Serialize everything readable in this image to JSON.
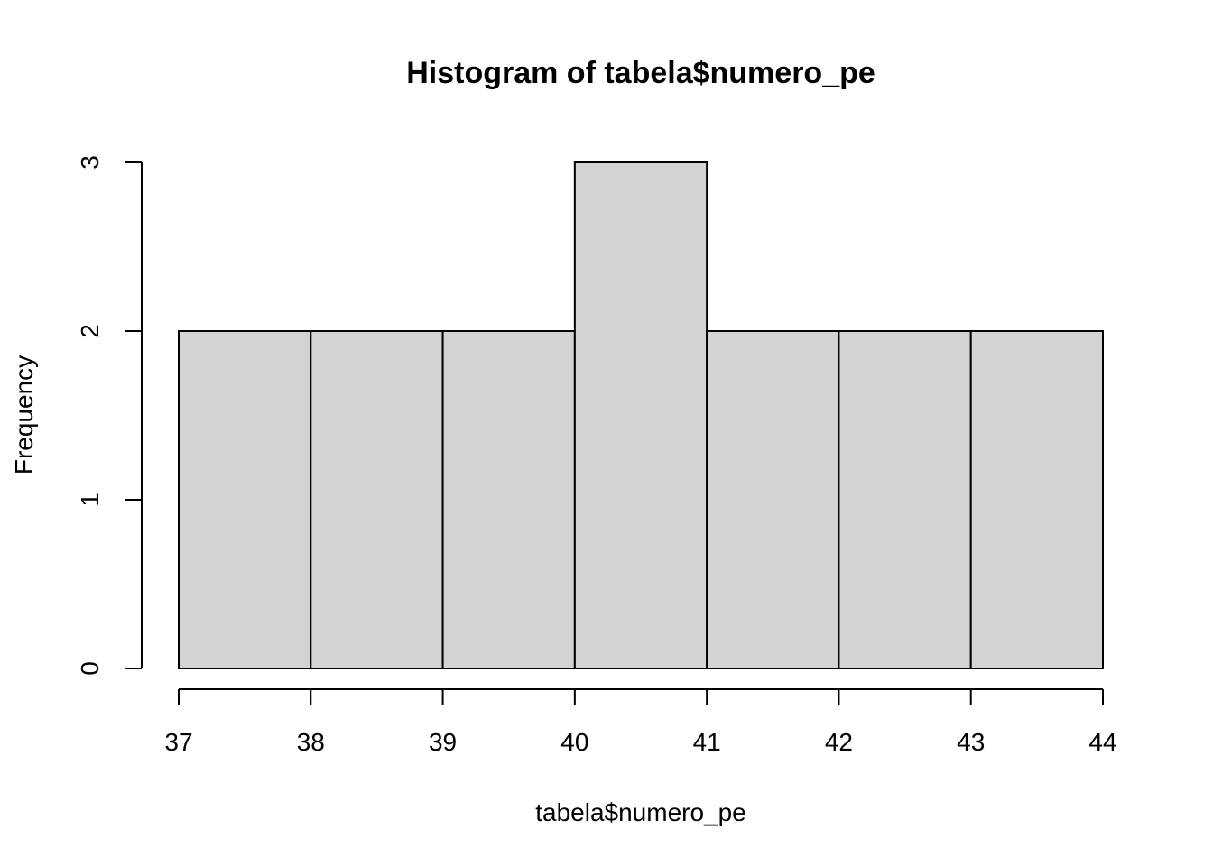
{
  "chart_data": {
    "type": "bar",
    "title": "Histogram of tabela$numero_pe",
    "xlabel": "tabela$numero_pe",
    "ylabel": "Frequency",
    "bins": [
      {
        "start": 37,
        "end": 38,
        "count": 2
      },
      {
        "start": 38,
        "end": 39,
        "count": 2
      },
      {
        "start": 39,
        "end": 40,
        "count": 2
      },
      {
        "start": 40,
        "end": 41,
        "count": 3
      },
      {
        "start": 41,
        "end": 42,
        "count": 2
      },
      {
        "start": 42,
        "end": 43,
        "count": 2
      },
      {
        "start": 43,
        "end": 44,
        "count": 2
      }
    ],
    "xticks": [
      37,
      38,
      39,
      40,
      41,
      42,
      43,
      44
    ],
    "yticks": [
      0,
      1,
      2,
      3
    ],
    "xlim": [
      37,
      44
    ],
    "ylim": [
      0,
      3
    ],
    "grid": false,
    "bar_color": "#d3d3d3",
    "border_color": "#000000"
  }
}
